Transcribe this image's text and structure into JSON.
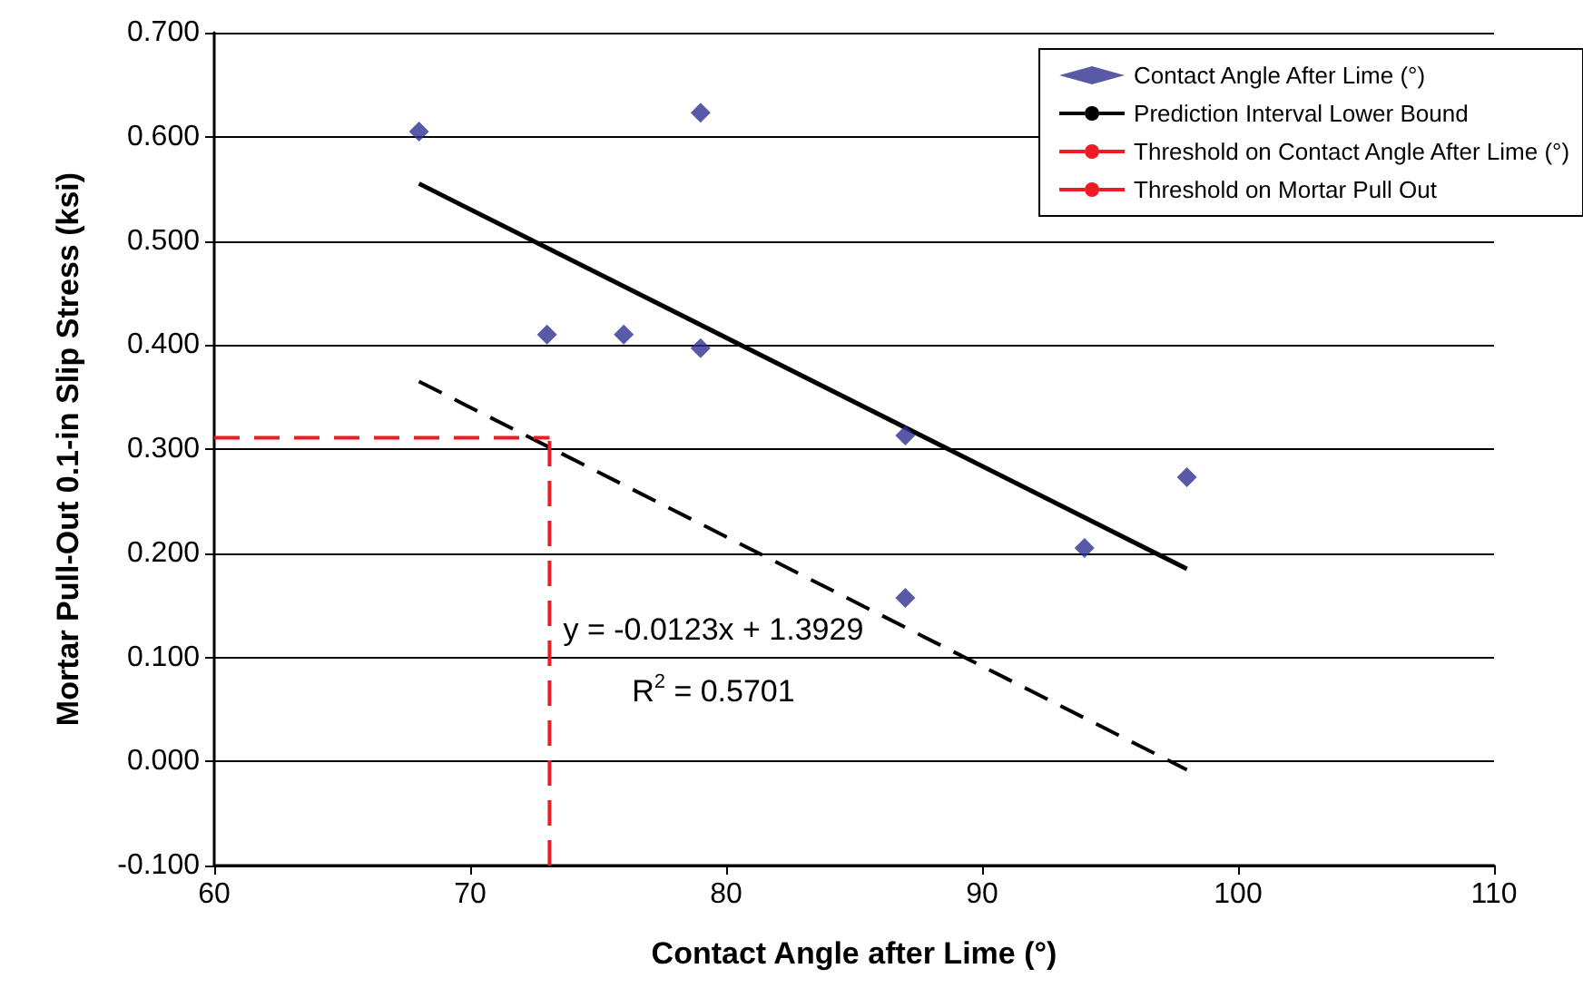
{
  "chart_data": {
    "type": "scatter",
    "xlabel": "Contact Angle after Lime (°)",
    "ylabel": "Mortar Pull-Out 0.1-in Slip Stress (ksi)",
    "series": [
      {
        "name": "Contact Angle After Lime (°)",
        "type": "scatter",
        "color": "#2e3192",
        "marker": "diamond",
        "x": [
          68,
          73,
          76,
          79,
          79,
          87,
          87,
          94,
          98
        ],
        "values": [
          0.605,
          0.41,
          0.41,
          0.623,
          0.397,
          0.313,
          0.157,
          0.205,
          0.273
        ]
      },
      {
        "name": "Prediction Interval Lower Bound",
        "type": "line",
        "color": "#000000",
        "line_style": "dashed",
        "marker": "none",
        "x": [
          68,
          98
        ],
        "values": [
          0.365,
          -0.008
        ]
      },
      {
        "name": "Threshold on Contact Angle After Lime (°)",
        "type": "line",
        "color": "#ed1c24",
        "line_style": "dashed",
        "marker": "none",
        "x": [
          73.1,
          73.1
        ],
        "values": [
          -0.1,
          0.311
        ]
      },
      {
        "name": "Threshold on Mortar Pull Out",
        "type": "line",
        "color": "#ed1c24",
        "line_style": "dashed",
        "marker": "none",
        "x": [
          60,
          73.1
        ],
        "values": [
          0.311,
          0.311
        ]
      },
      {
        "type": "line",
        "color": "#000000",
        "line_style": "solid",
        "marker": "none",
        "x": [
          68,
          98
        ],
        "values": [
          0.555,
          0.185
        ]
      }
    ],
    "xlim": [
      60,
      110
    ],
    "xticks": [
      60,
      70,
      80,
      90,
      100,
      110
    ],
    "ylim": [
      -0.1,
      0.7
    ],
    "yticks": [
      {
        "value": -0.1,
        "label": "-0.100"
      },
      {
        "value": 0,
        "label": "0.000"
      },
      {
        "value": 0.1,
        "label": "0.100"
      },
      {
        "value": 0.2,
        "label": "0.200"
      },
      {
        "value": 0.3,
        "label": "0.300"
      },
      {
        "value": 0.4,
        "label": "0.400"
      },
      {
        "value": 0.5,
        "label": "0.500"
      },
      {
        "value": 0.6,
        "label": "0.600"
      },
      {
        "value": 0.7,
        "label": "0.700"
      }
    ],
    "annotations": [
      "y = -0.0123x + 1.3929",
      "R$^{2}$ = 0.5701"
    ],
    "grid": "y",
    "legend": "top right"
  }
}
